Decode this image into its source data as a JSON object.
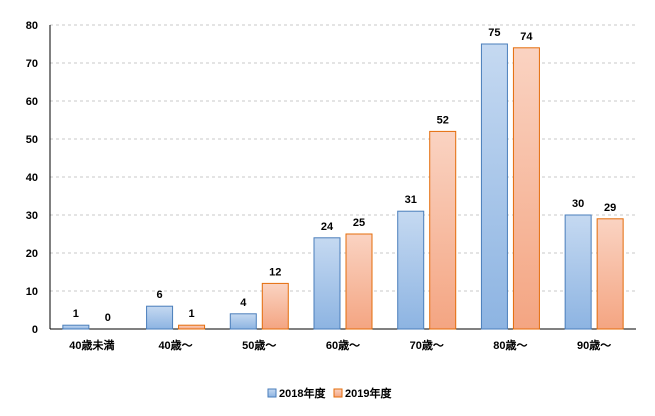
{
  "chart_data": {
    "type": "bar",
    "categories": [
      "40歳未満",
      "40歳～",
      "50歳～",
      "60歳～",
      "70歳～",
      "80歳～",
      "90歳～"
    ],
    "series": [
      {
        "name": "2018年度",
        "values": [
          1,
          6,
          4,
          24,
          31,
          75,
          30
        ],
        "color": "#8DB4E2",
        "color_light": "#C5D9F1",
        "stroke": "#4A7EBB"
      },
      {
        "name": "2019年度",
        "values": [
          0,
          1,
          12,
          25,
          52,
          74,
          29
        ],
        "color": "#F4A582",
        "color_light": "#FAD3C2",
        "stroke": "#E46C0A"
      }
    ],
    "yticks": [
      0,
      10,
      20,
      30,
      40,
      50,
      60,
      70,
      80
    ],
    "ylim": [
      0,
      80
    ],
    "grid": true,
    "gridline_style": "dashed",
    "legend_position": "bottom",
    "show_data_labels": true
  }
}
